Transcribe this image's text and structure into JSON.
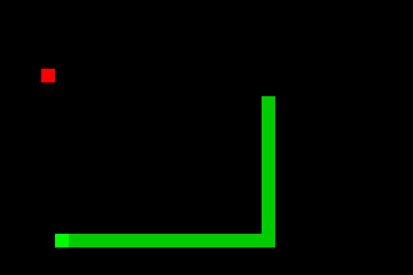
{
  "game": {
    "grid": {
      "columns": 30,
      "rows": 20
    },
    "colors": {
      "background": "#000000",
      "snake_head": "#00FF00",
      "snake_body": "#00CC00",
      "food": "#FF0000"
    },
    "food": {
      "col": 3,
      "row": 5
    },
    "snake": [
      {
        "col": 4,
        "row": 17
      },
      {
        "col": 5,
        "row": 17
      },
      {
        "col": 6,
        "row": 17
      },
      {
        "col": 7,
        "row": 17
      },
      {
        "col": 8,
        "row": 17
      },
      {
        "col": 9,
        "row": 17
      },
      {
        "col": 10,
        "row": 17
      },
      {
        "col": 11,
        "row": 17
      },
      {
        "col": 12,
        "row": 17
      },
      {
        "col": 13,
        "row": 17
      },
      {
        "col": 14,
        "row": 17
      },
      {
        "col": 15,
        "row": 17
      },
      {
        "col": 16,
        "row": 17
      },
      {
        "col": 17,
        "row": 17
      },
      {
        "col": 18,
        "row": 17
      },
      {
        "col": 19,
        "row": 17
      },
      {
        "col": 19,
        "row": 16
      },
      {
        "col": 19,
        "row": 15
      },
      {
        "col": 19,
        "row": 14
      },
      {
        "col": 19,
        "row": 13
      },
      {
        "col": 19,
        "row": 12
      },
      {
        "col": 19,
        "row": 11
      },
      {
        "col": 19,
        "row": 10
      },
      {
        "col": 19,
        "row": 9
      },
      {
        "col": 19,
        "row": 8
      },
      {
        "col": 19,
        "row": 7
      }
    ]
  }
}
